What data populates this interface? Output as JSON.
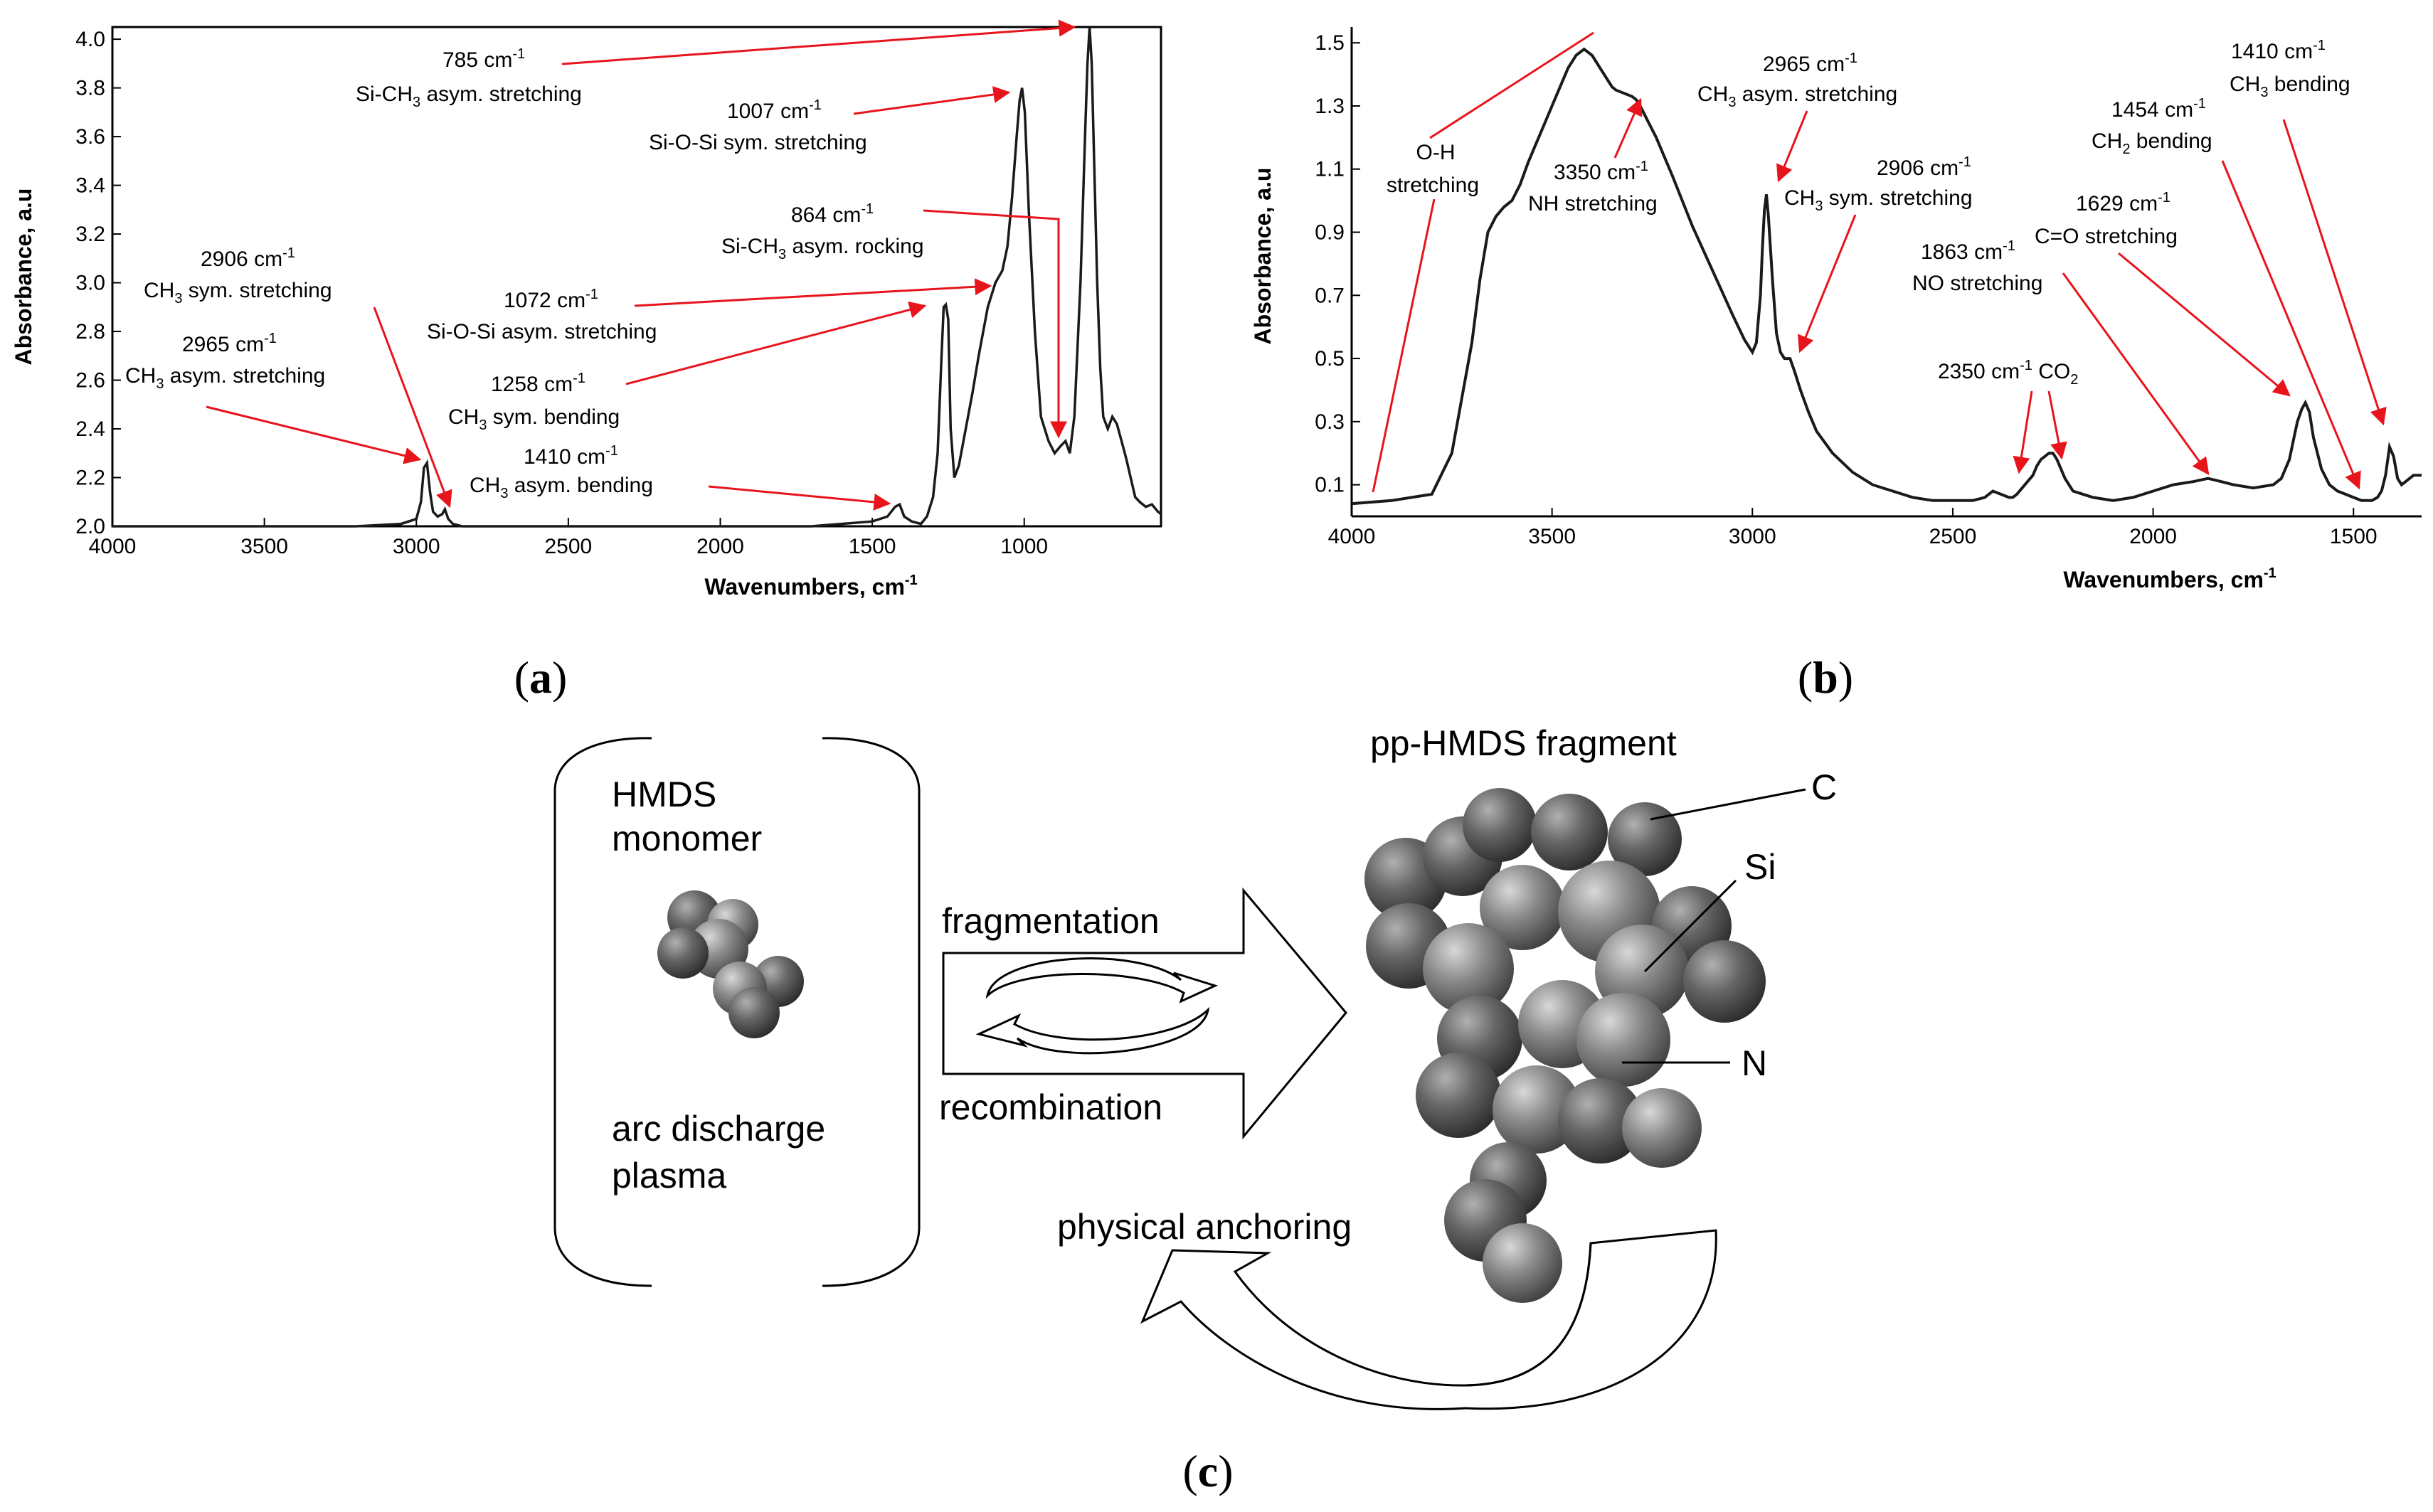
{
  "colors": {
    "annotation": "#e8141c",
    "curve": "#1a1a1a",
    "atom": "#6e6e6e"
  },
  "panel_labels": {
    "a": "a",
    "b": "b",
    "c": "c"
  },
  "chart_data": [
    {
      "panel": "a",
      "type": "line",
      "xlabel": "Wavenumbers, cm",
      "xlabel_sup": "-1",
      "ylabel": "Absorbance, a.u",
      "xlim": [
        4000,
        550
      ],
      "ylim": [
        2.0,
        4.05
      ],
      "x_ticks": [
        "4000",
        "3500",
        "3000",
        "2500",
        "2000",
        "1500",
        "1000"
      ],
      "x_tick_values": [
        4000,
        3500,
        3000,
        2500,
        2000,
        1500,
        1000
      ],
      "y_ticks": [
        "2.0",
        "2.2",
        "2.4",
        "2.6",
        "2.8",
        "3.0",
        "3.2",
        "3.4",
        "3.6",
        "3.8",
        "4.0"
      ],
      "y_tick_values": [
        2.0,
        2.2,
        2.4,
        2.6,
        2.8,
        3.0,
        3.2,
        3.4,
        3.6,
        3.8,
        4.0
      ],
      "series": [
        {
          "name": "HMDS monomer",
          "x": [
            4000,
            3800,
            3600,
            3400,
            3200,
            3050,
            3000,
            2985,
            2975,
            2965,
            2955,
            2945,
            2930,
            2915,
            2906,
            2895,
            2880,
            2850,
            2700,
            2400,
            2000,
            1700,
            1500,
            1450,
            1425,
            1410,
            1395,
            1370,
            1340,
            1320,
            1300,
            1285,
            1272,
            1265,
            1258,
            1250,
            1242,
            1230,
            1215,
            1200,
            1185,
            1170,
            1150,
            1120,
            1095,
            1072,
            1055,
            1040,
            1025,
            1015,
            1007,
            998,
            985,
            965,
            945,
            920,
            900,
            880,
            864,
            850,
            835,
            815,
            800,
            792,
            785,
            778,
            770,
            760,
            750,
            740,
            725,
            710,
            695,
            680,
            665,
            650,
            635,
            620,
            600,
            580,
            560,
            550
          ],
          "y": [
            2.0,
            2.0,
            2.0,
            2.0,
            2.0,
            2.01,
            2.03,
            2.1,
            2.24,
            2.26,
            2.14,
            2.06,
            2.04,
            2.05,
            2.07,
            2.03,
            2.01,
            2.0,
            2.0,
            2.0,
            2.0,
            2.0,
            2.02,
            2.04,
            2.08,
            2.09,
            2.04,
            2.02,
            2.01,
            2.04,
            2.12,
            2.3,
            2.7,
            2.9,
            2.91,
            2.85,
            2.4,
            2.2,
            2.25,
            2.35,
            2.45,
            2.55,
            2.7,
            2.9,
            3.0,
            3.05,
            3.15,
            3.35,
            3.6,
            3.75,
            3.8,
            3.7,
            3.3,
            2.8,
            2.45,
            2.35,
            2.3,
            2.33,
            2.35,
            2.3,
            2.45,
            3.0,
            3.6,
            3.9,
            4.05,
            3.9,
            3.5,
            3.0,
            2.65,
            2.45,
            2.4,
            2.45,
            2.42,
            2.35,
            2.28,
            2.2,
            2.12,
            2.1,
            2.08,
            2.09,
            2.06,
            2.05
          ]
        }
      ],
      "annotations": [
        {
          "label": "785 cm",
          "sup": "-1",
          "desc": "Si-CH",
          "desc_sub": "3",
          "desc_rest": " asym. stretching",
          "x": 785,
          "y": 4.05
        },
        {
          "label": "1007 cm",
          "sup": "-1",
          "desc": "Si-O-Si sym. stretching",
          "desc_sub": "",
          "desc_rest": "",
          "x": 1007,
          "y": 3.8
        },
        {
          "label": "864 cm",
          "sup": "-1",
          "desc": "Si-CH",
          "desc_sub": "3",
          "desc_rest": " asym. rocking",
          "x": 864,
          "y": 2.38
        },
        {
          "label": "1072 cm",
          "sup": "-1",
          "desc": "Si-O-Si asym. stretching",
          "desc_sub": "",
          "desc_rest": "",
          "x": 1072,
          "y": 3.0
        },
        {
          "label": "1258 cm",
          "sup": "-1",
          "desc": "CH",
          "desc_sub": "3",
          "desc_rest": " sym. bending",
          "x": 1258,
          "y": 2.9
        },
        {
          "label": "1410 cm",
          "sup": "-1",
          "desc": "CH",
          "desc_sub": "3",
          "desc_rest": " asym. bending",
          "x": 1410,
          "y": 2.09
        },
        {
          "label": "2906 cm",
          "sup": "-1",
          "desc": "CH",
          "desc_sub": "3",
          "desc_rest": " sym. stretching",
          "x": 2906,
          "y": 2.07
        },
        {
          "label": "2965 cm",
          "sup": "-1",
          "desc": "CH",
          "desc_sub": "3",
          "desc_rest": " asym. stretching",
          "x": 2965,
          "y": 2.26
        }
      ]
    },
    {
      "panel": "b",
      "type": "line",
      "xlabel": "Wavenumbers, cm",
      "xlabel_sup": "-1",
      "ylabel": "Absorbance, a.u",
      "xlim": [
        4000,
        1330
      ],
      "ylim": [
        0.0,
        1.55
      ],
      "x_ticks": [
        "4000",
        "3500",
        "3000",
        "2500",
        "2000",
        "1500"
      ],
      "x_tick_values": [
        4000,
        3500,
        3000,
        2500,
        2000,
        1500
      ],
      "y_ticks": [
        "0.1",
        "0.3",
        "0.5",
        "0.7",
        "0.9",
        "1.1",
        "1.3",
        "1.5"
      ],
      "y_tick_values": [
        0.1,
        0.3,
        0.5,
        0.7,
        0.9,
        1.1,
        1.3,
        1.5
      ],
      "series": [
        {
          "name": "pp-HMDS",
          "x": [
            4000,
            3900,
            3800,
            3750,
            3700,
            3680,
            3660,
            3640,
            3620,
            3600,
            3580,
            3560,
            3540,
            3520,
            3500,
            3480,
            3460,
            3440,
            3420,
            3400,
            3380,
            3360,
            3350,
            3340,
            3320,
            3300,
            3290,
            3280,
            3260,
            3240,
            3200,
            3150,
            3100,
            3050,
            3020,
            3000,
            2990,
            2980,
            2975,
            2970,
            2965,
            2960,
            2950,
            2940,
            2930,
            2920,
            2910,
            2906,
            2895,
            2880,
            2860,
            2840,
            2800,
            2750,
            2700,
            2650,
            2600,
            2550,
            2500,
            2450,
            2420,
            2400,
            2380,
            2360,
            2350,
            2340,
            2320,
            2300,
            2290,
            2280,
            2270,
            2260,
            2250,
            2240,
            2230,
            2220,
            2200,
            2150,
            2100,
            2050,
            2000,
            1950,
            1900,
            1863,
            1830,
            1800,
            1750,
            1700,
            1680,
            1660,
            1650,
            1640,
            1629,
            1620,
            1610,
            1600,
            1580,
            1560,
            1540,
            1520,
            1500,
            1480,
            1454,
            1440,
            1430,
            1420,
            1410,
            1400,
            1390,
            1380,
            1370,
            1360,
            1350,
            1340,
            1330
          ],
          "y": [
            0.04,
            0.05,
            0.07,
            0.2,
            0.55,
            0.75,
            0.9,
            0.95,
            0.98,
            1.0,
            1.05,
            1.12,
            1.18,
            1.24,
            1.3,
            1.36,
            1.42,
            1.46,
            1.48,
            1.46,
            1.42,
            1.38,
            1.36,
            1.35,
            1.34,
            1.33,
            1.32,
            1.3,
            1.25,
            1.2,
            1.08,
            0.92,
            0.78,
            0.64,
            0.56,
            0.52,
            0.55,
            0.7,
            0.85,
            0.97,
            1.02,
            0.95,
            0.75,
            0.58,
            0.52,
            0.5,
            0.5,
            0.5,
            0.46,
            0.4,
            0.33,
            0.27,
            0.2,
            0.14,
            0.1,
            0.08,
            0.06,
            0.05,
            0.05,
            0.05,
            0.06,
            0.08,
            0.07,
            0.06,
            0.06,
            0.07,
            0.1,
            0.13,
            0.16,
            0.18,
            0.19,
            0.2,
            0.2,
            0.18,
            0.15,
            0.12,
            0.08,
            0.06,
            0.05,
            0.06,
            0.08,
            0.1,
            0.11,
            0.12,
            0.11,
            0.1,
            0.09,
            0.1,
            0.12,
            0.18,
            0.24,
            0.3,
            0.34,
            0.36,
            0.33,
            0.25,
            0.15,
            0.1,
            0.08,
            0.07,
            0.06,
            0.05,
            0.05,
            0.06,
            0.08,
            0.13,
            0.22,
            0.19,
            0.12,
            0.1,
            0.11,
            0.12,
            0.13,
            0.13,
            0.13
          ]
        }
      ],
      "annotations": [
        {
          "id": "oh",
          "line1": "O-H",
          "line2": "stretching"
        },
        {
          "id": "nh",
          "line1": "3350 cm",
          "line1_sup": "-1",
          "line2": "NH stretching",
          "x": 3350,
          "y": 1.35
        },
        {
          "id": "ch3asym",
          "line1": "2965 cm",
          "line1_sup": "-1",
          "line2a": "CH",
          "line2_sub": "3",
          "line2b": " asym. stretching",
          "x": 2965,
          "y": 1.02
        },
        {
          "id": "ch3sym",
          "line1": "2906 cm",
          "line1_sup": "-1",
          "line2a": "CH",
          "line2_sub": "3",
          "line2b": " sym. stretching",
          "x": 2906,
          "y": 0.5
        },
        {
          "id": "co2",
          "line1": "2350 cm",
          "line1_sup": "-1",
          "line1b": " CO",
          "line1b_sub": "2",
          "x": 2350,
          "y": 0.06
        },
        {
          "id": "no",
          "line1": "1863 cm",
          "line1_sup": "-1",
          "line2": "NO stretching",
          "x": 1863,
          "y": 0.12
        },
        {
          "id": "co",
          "line1": "1629 cm",
          "line1_sup": "-1",
          "line2": "C=O stretching",
          "x": 1629,
          "y": 0.36
        },
        {
          "id": "ch2",
          "line1": "1454 cm",
          "line1_sup": "-1",
          "line2a": "CH",
          "line2_sub": "2",
          "line2b": " bending",
          "x": 1454,
          "y": 0.08
        },
        {
          "id": "ch3bend",
          "line1": "1410 cm",
          "line1_sup": "-1",
          "line2a": "CH",
          "line2_sub": "3",
          "line2b": " bending",
          "x": 1410,
          "y": 0.22
        }
      ]
    }
  ],
  "diagram": {
    "monomer_line1": "HMDS",
    "monomer_line2": "monomer",
    "plasma_line1": "arc discharge",
    "plasma_line2": "plasma",
    "fragmentation": "fragmentation",
    "recombination": "recombination",
    "fragment_title": "pp-HMDS fragment",
    "atom_c": "C",
    "atom_si": "Si",
    "atom_n": "N",
    "anchoring": "physical anchoring"
  }
}
